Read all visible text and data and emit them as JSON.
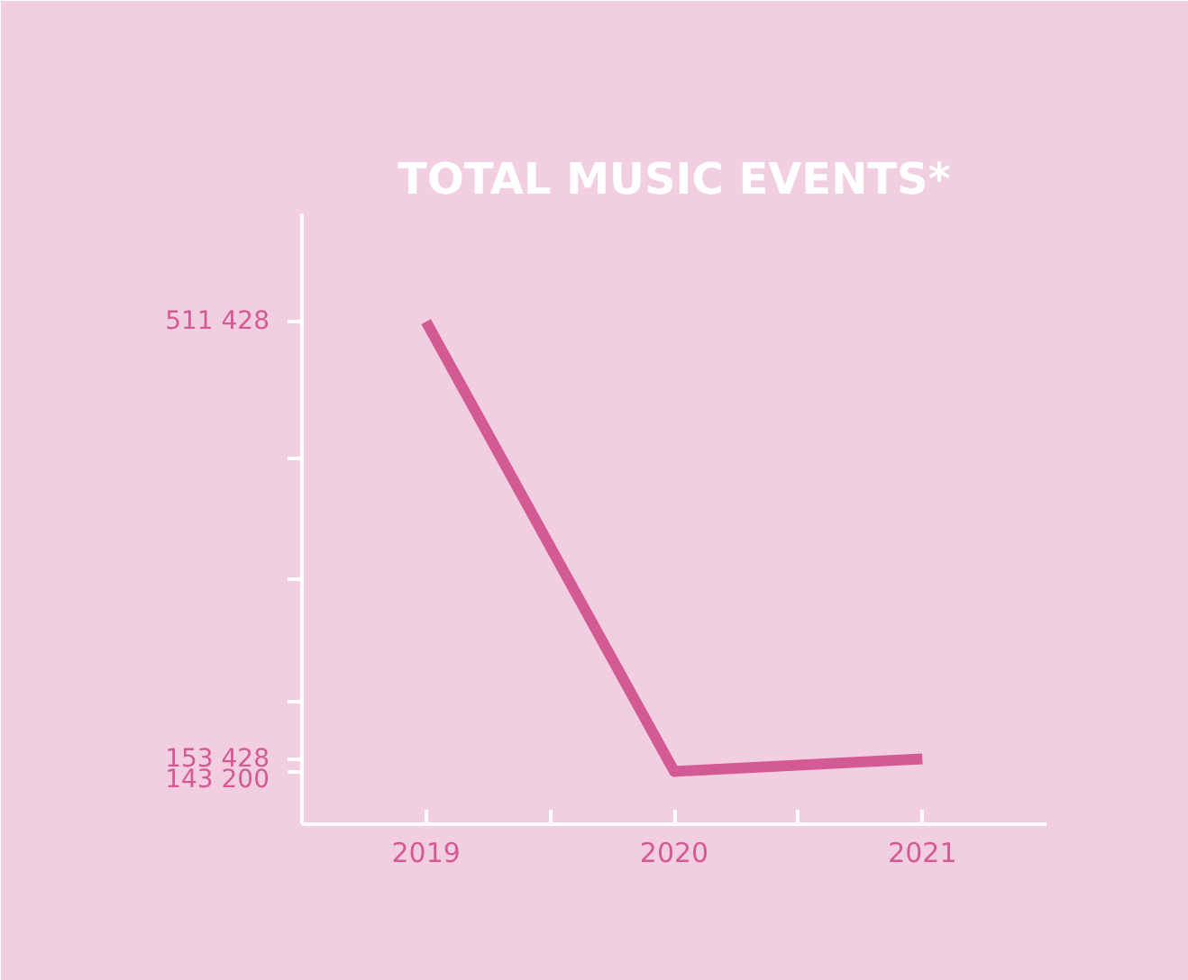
{
  "chart_data": {
    "type": "line",
    "title": "TOTAL MUSIC EVENTS*",
    "categories": [
      "2019",
      "2020",
      "2021"
    ],
    "series": [
      {
        "color": "#d45a94",
        "values": [
          511428,
          143200,
          153428
        ]
      }
    ],
    "ylim": [
      100000,
      600000
    ],
    "yticks": [
      {
        "value": 153428,
        "label": "153 428"
      },
      {
        "value": 200000,
        "label": null
      },
      {
        "value": 300000,
        "label": null
      },
      {
        "value": 400000,
        "label": null
      },
      {
        "value": 511428,
        "label": "511 428"
      },
      {
        "value": 143200,
        "label": "143 200"
      }
    ],
    "grid": false,
    "marker": "none",
    "line_style": "solid"
  }
}
